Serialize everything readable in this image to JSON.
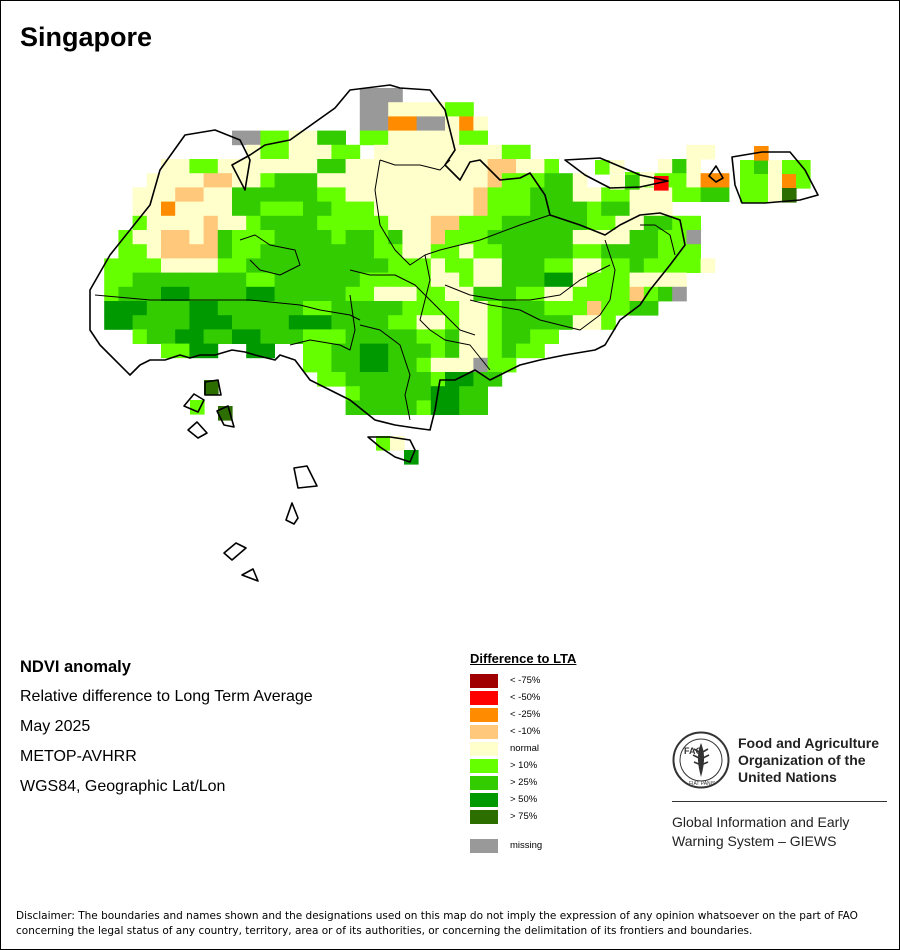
{
  "map": {
    "title": "Singapore"
  },
  "info": {
    "indicator": "NDVI anomaly",
    "description": "Relative difference to Long Term Average",
    "period": "May 2025",
    "sensor": "METOP-AVHRR",
    "projection": "WGS84, Geographic Lat/Lon"
  },
  "legend": {
    "title": "Difference to LTA",
    "classes": [
      {
        "label": "< -75%",
        "color": "#a00000"
      },
      {
        "label": "< -50%",
        "color": "#ff0000"
      },
      {
        "label": "< -25%",
        "color": "#ff8c00"
      },
      {
        "label": "< -10%",
        "color": "#ffc87a"
      },
      {
        "label": "normal",
        "color": "#ffffcc"
      },
      {
        "label": "> 10%",
        "color": "#66ff00"
      },
      {
        "label": "> 25%",
        "color": "#33cc00"
      },
      {
        "label": "> 50%",
        "color": "#009900"
      },
      {
        "label": "> 75%",
        "color": "#2d6e00"
      }
    ],
    "missing": {
      "label": "missing",
      "color": "#999999"
    }
  },
  "logo": {
    "org_line1": "Food and Agriculture",
    "org_line2": "Organization of the",
    "org_line3": "United Nations",
    "acronym": "FAO",
    "motto": "FIAT PANIS",
    "giews_line1": "Global Information and Early",
    "giews_line2": "Warning System – GIEWS"
  },
  "disclaimer": {
    "line1": "Disclaimer: The boundaries and names shown and the designations used on this map do not imply the expression of any opinion whatsoever on the part of FAO",
    "line2": "concerning the legal status of any country, territory, area or of its authorities, or concerning the delimitation of its frontiers and boundaries."
  }
}
